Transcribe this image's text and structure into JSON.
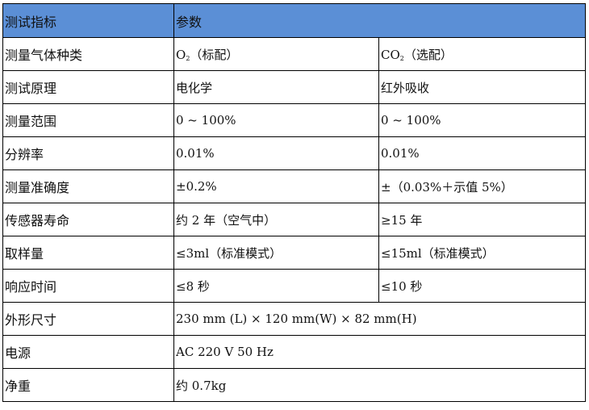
{
  "header": {
    "col1": "测试指标",
    "col2": "参数",
    "color": "#5b8fd6"
  },
  "rows": [
    {
      "label": "测量气体种类",
      "v1": "O",
      "v1_sub": "2",
      "v1_tail": "（标配）",
      "v2": "CO",
      "v2_sub": "2",
      "v2_tail": "（选配）"
    },
    {
      "label": "测试原理",
      "v1": "电化学",
      "v2": "红外吸收"
    },
    {
      "label": "测量范围",
      "v1": "0 ~ 100%",
      "v2": "0 ~ 100%"
    },
    {
      "label": "分辨率",
      "v1": "0.01%",
      "v2": "0.01%"
    },
    {
      "label": "测量准确度",
      "v1": "±0.2%",
      "v2": "±（0.03%＋示值 5%）"
    },
    {
      "label": "传感器寿命",
      "v1": "约 2 年（空气中）",
      "v2": "≥15 年"
    },
    {
      "label": "取样量",
      "v1": "≤3ml（标准模式）",
      "v2": "≤15ml（标准模式）"
    },
    {
      "label": "响应时间",
      "v1": "≤8 秒",
      "v2": "≤10 秒"
    },
    {
      "label": "外形尺寸",
      "v": "230 mm (L) × 120 mm(W) × 82 mm(H)"
    },
    {
      "label": "电源",
      "v": "AC 220 V 50 Hz"
    },
    {
      "label": "净重",
      "v": "约 0.7kg"
    }
  ]
}
